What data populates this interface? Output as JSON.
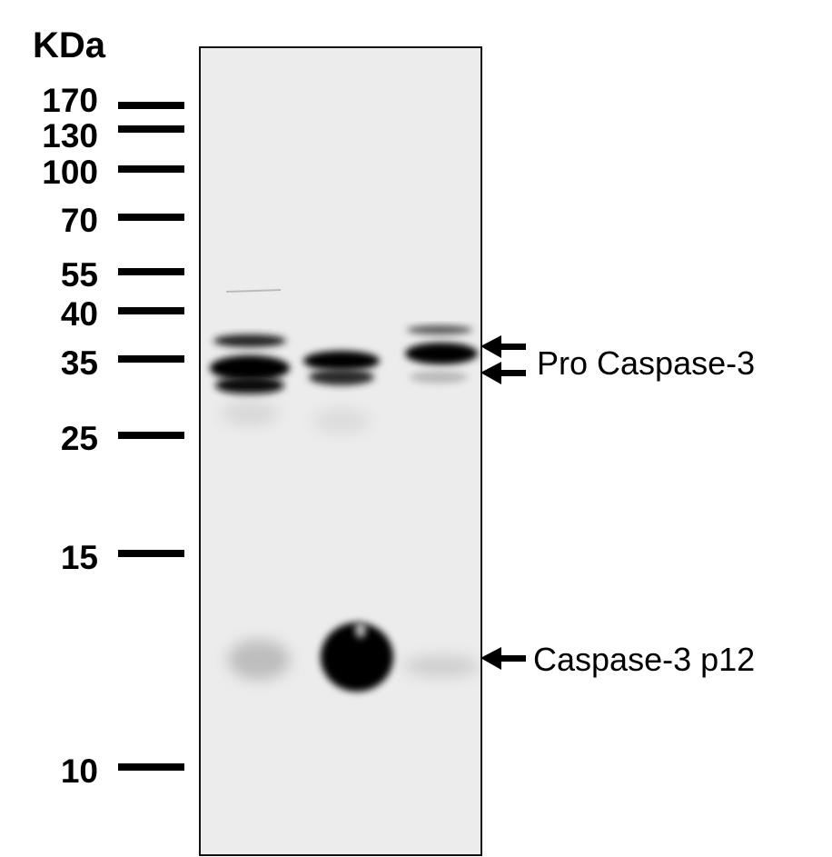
{
  "unit_label": "KDa",
  "markers": [
    "170",
    "130",
    "100",
    "70",
    "55",
    "40",
    "35",
    "25",
    "15",
    "10"
  ],
  "annotations": {
    "pro": "Pro Caspase-3",
    "p12": "Caspase-3 p12"
  },
  "colors": {
    "membrane": "#ececec",
    "band": "#000000"
  }
}
